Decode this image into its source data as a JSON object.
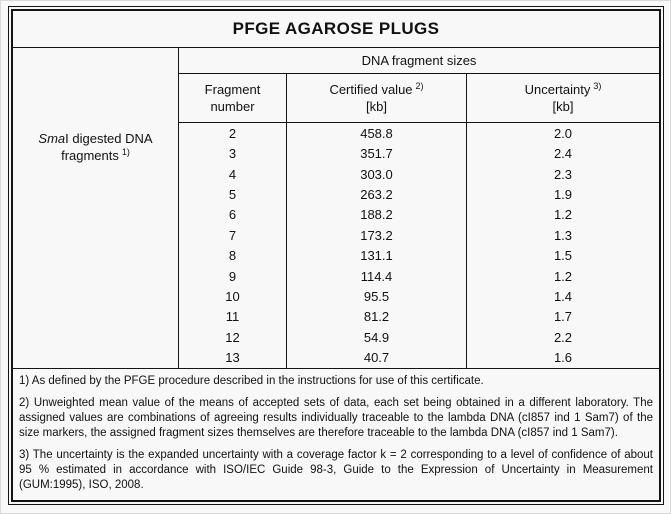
{
  "title": "PFGE AGAROSE PLUGS",
  "table": {
    "group_header": "DNA fragment sizes",
    "columns": {
      "fragment": {
        "line1": "Fragment",
        "line2": "number"
      },
      "certified": {
        "label": "Certified value",
        "sup": "2)",
        "unit": "[kb]"
      },
      "uncertainty": {
        "label": "Uncertainty",
        "sup": "3)",
        "unit": "[kb]"
      }
    },
    "row_label": {
      "enzyme_italic": "Sma",
      "line1_rest": "I digested DNA",
      "line2": "fragments",
      "sup": "1)"
    },
    "rows": [
      {
        "fragment": "2",
        "value": "458.8",
        "uncertainty": "2.0"
      },
      {
        "fragment": "3",
        "value": "351.7",
        "uncertainty": "2.4"
      },
      {
        "fragment": "4",
        "value": "303.0",
        "uncertainty": "2.3"
      },
      {
        "fragment": "5",
        "value": "263.2",
        "uncertainty": "1.9"
      },
      {
        "fragment": "6",
        "value": "188.2",
        "uncertainty": "1.2"
      },
      {
        "fragment": "7",
        "value": "173.2",
        "uncertainty": "1.3"
      },
      {
        "fragment": "8",
        "value": "131.1",
        "uncertainty": "1.5"
      },
      {
        "fragment": "9",
        "value": "114.4",
        "uncertainty": "1.2"
      },
      {
        "fragment": "10",
        "value": "95.5",
        "uncertainty": "1.4"
      },
      {
        "fragment": "11",
        "value": "81.2",
        "uncertainty": "1.7"
      },
      {
        "fragment": "12",
        "value": "54.9",
        "uncertainty": "2.2"
      },
      {
        "fragment": "13",
        "value": "40.7",
        "uncertainty": "1.6"
      }
    ]
  },
  "footnotes": [
    "1) As defined by the PFGE procedure described in the instructions for use of this certificate.",
    "2) Unweighted mean value of the means of accepted sets of data, each set being obtained in a different laboratory. The assigned values are combinations of agreeing results individually traceable to the lambda DNA (cI857 ind 1 Sam7) of the size markers, the assigned fragment sizes themselves are therefore traceable to the lambda DNA (cI857 ind 1 Sam7).",
    "3) The uncertainty is the expanded uncertainty with a coverage factor k = 2 corresponding to a level of confidence of about 95 % estimated in accordance with ISO/IEC Guide 98-3, Guide to the Expression of Uncertainty in Measurement (GUM:1995), ISO, 2008."
  ],
  "colors": {
    "background": "#f8f8f8",
    "border": "#141414",
    "text": "#111111"
  }
}
